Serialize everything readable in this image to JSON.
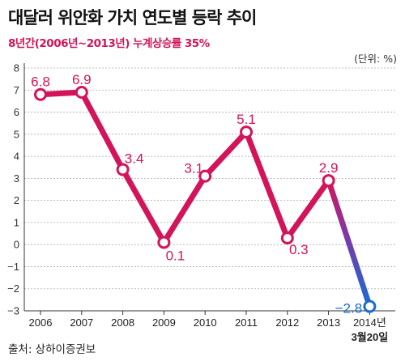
{
  "title": "대달러 위안화 가치 연도별 등락 추이",
  "subtitle": "8년간(2006년~2013년) 누계상승률 35%",
  "unit": "(단위: %)",
  "source": "출처: 상하이증권보",
  "colors": {
    "line": "#d4145a",
    "line_end": "#1a6ad6",
    "grid": "#aaaaaa"
  },
  "chart_data": {
    "type": "line",
    "categories": [
      "2006",
      "2007",
      "2008",
      "2009",
      "2010",
      "2011",
      "2012",
      "2013",
      "2014년"
    ],
    "category_sublabels": [
      "",
      "",
      "",
      "",
      "",
      "",
      "",
      "",
      "3월20일"
    ],
    "values": [
      6.8,
      6.9,
      3.4,
      0.1,
      3.1,
      5.1,
      0.3,
      2.9,
      -2.8
    ],
    "data_labels": [
      "6.8",
      "6.9",
      "3.4",
      "0.1",
      "3.1",
      "5.1",
      "0.3",
      "2.9",
      "−2.8"
    ],
    "yticks": [
      "8",
      "7",
      "6",
      "5",
      "4",
      "3",
      "2",
      "1",
      "0",
      "−1",
      "−2",
      "−3"
    ],
    "ylim": [
      -3,
      8
    ],
    "grid": "horizontal-dashed"
  }
}
